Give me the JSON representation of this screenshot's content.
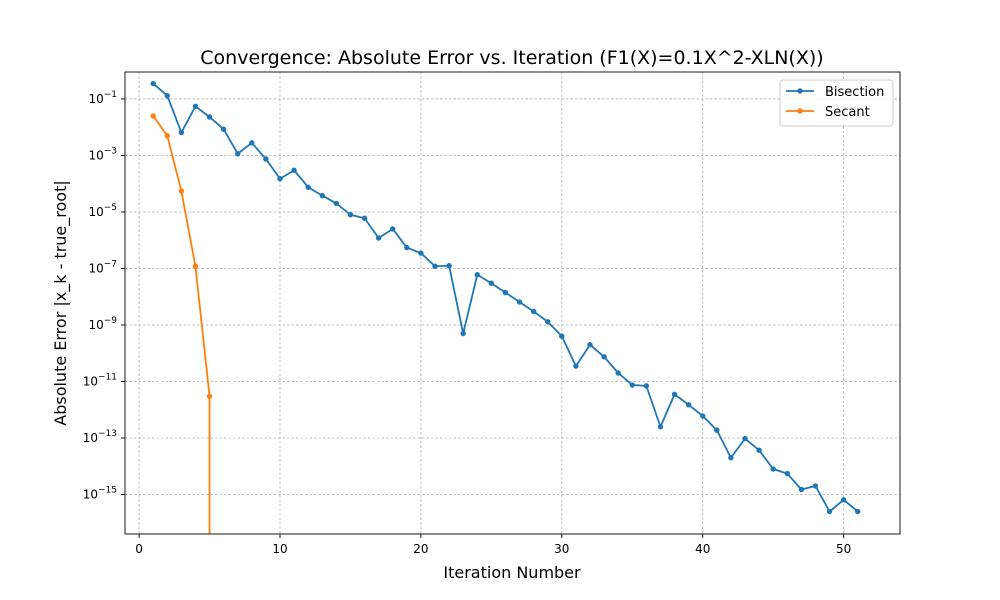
{
  "chart_data": {
    "type": "line",
    "title": "Convergence: Absolute Error vs. Iteration (F1(X)=0.1X^2-XLN(X))",
    "xlabel": "Iteration Number",
    "ylabel": "Absolute Error |x_k - true_root|",
    "xlim": [
      -1,
      54
    ],
    "ylim": [
      4e-17,
      0.9
    ],
    "yscale": "log",
    "grid": true,
    "legend_position": "top-right",
    "x_ticks": [
      0,
      10,
      20,
      30,
      40,
      50
    ],
    "x_tick_labels": [
      "0",
      "10",
      "20",
      "30",
      "40",
      "50"
    ],
    "y_ticks": [
      0.1,
      0.001,
      1e-05,
      1e-07,
      1e-09,
      1e-11,
      1e-13,
      1e-15
    ],
    "y_tick_labels": [
      {
        "base": "10",
        "exp": "−1"
      },
      {
        "base": "10",
        "exp": "−3"
      },
      {
        "base": "10",
        "exp": "−5"
      },
      {
        "base": "10",
        "exp": "−7"
      },
      {
        "base": "10",
        "exp": "−9"
      },
      {
        "base": "10",
        "exp": "−11"
      },
      {
        "base": "10",
        "exp": "−13"
      },
      {
        "base": "10",
        "exp": "−15"
      }
    ],
    "series": [
      {
        "name": "Bisection",
        "color": "#1f77b4",
        "x": [
          1,
          2,
          3,
          4,
          5,
          6,
          7,
          8,
          9,
          10,
          11,
          12,
          13,
          14,
          15,
          16,
          17,
          18,
          19,
          20,
          21,
          22,
          23,
          24,
          25,
          26,
          27,
          28,
          29,
          30,
          31,
          32,
          33,
          34,
          35,
          36,
          37,
          38,
          39,
          40,
          41,
          42,
          43,
          44,
          45,
          46,
          47,
          48,
          49,
          50,
          51
        ],
        "y": [
          0.35,
          0.13,
          0.0065,
          0.055,
          0.023,
          0.0085,
          0.00115,
          0.0028,
          0.00075,
          0.00015,
          0.0003,
          7.5e-05,
          3.8e-05,
          2e-05,
          8e-06,
          6e-06,
          1.2e-06,
          2.5e-06,
          5.5e-07,
          3.5e-07,
          1.2e-07,
          1.25e-07,
          5e-10,
          6e-08,
          3e-08,
          1.4e-08,
          6.5e-09,
          3e-09,
          1.3e-09,
          4e-10,
          3.5e-11,
          2e-10,
          7.5e-11,
          2e-11,
          7.5e-12,
          7e-12,
          2.5e-13,
          3.5e-12,
          1.5e-12,
          6e-13,
          1.9e-13,
          2e-14,
          9.5e-14,
          3.7e-14,
          8e-15,
          5.5e-15,
          1.5e-15,
          2e-15,
          2.5e-16,
          6.5e-16,
          2.5e-16
        ]
      },
      {
        "name": "Secant",
        "color": "#ff7f0e",
        "x": [
          1,
          2,
          3,
          4,
          5
        ],
        "y": [
          0.025,
          0.005,
          5.5e-05,
          1.2e-07,
          3e-12
        ],
        "drop_below_axis_at": 5
      }
    ]
  }
}
